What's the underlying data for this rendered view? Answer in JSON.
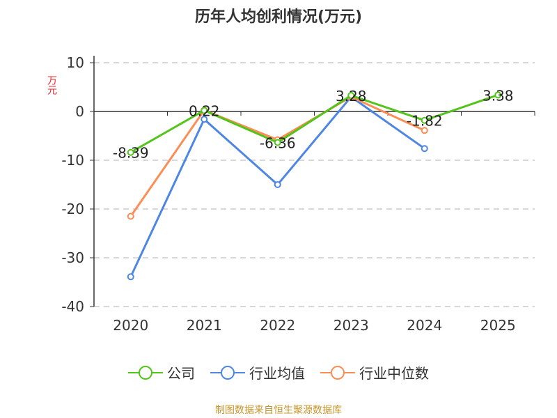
{
  "chart_data": {
    "type": "line",
    "title": "历年人均创利情况(万元)",
    "ylabel": "万元",
    "categories": [
      "2020",
      "2021",
      "2022",
      "2023",
      "2024",
      "2025"
    ],
    "ylim": [
      -40,
      10
    ],
    "yticks": [
      10,
      0,
      -10,
      -20,
      -30,
      -40
    ],
    "grid": true,
    "legend_position": "bottom",
    "series": [
      {
        "name": "公司",
        "color": "#52c41a",
        "values": [
          -8.39,
          0.22,
          -6.36,
          3.28,
          -1.82,
          3.38
        ],
        "labels": [
          "-8.39",
          "0.22",
          "-6.36",
          "3.28",
          "-1.82",
          "3.38"
        ]
      },
      {
        "name": "行业均值",
        "color": "#4e86e4",
        "values": [
          -33.9,
          -1.6,
          -15.0,
          3.0,
          -7.6,
          null
        ]
      },
      {
        "name": "行业中位数",
        "color": "#fa8e55",
        "values": [
          -21.5,
          0.25,
          -5.8,
          3.0,
          -3.9,
          null
        ]
      }
    ]
  },
  "source": "制图数据来自恒生聚源数据库"
}
